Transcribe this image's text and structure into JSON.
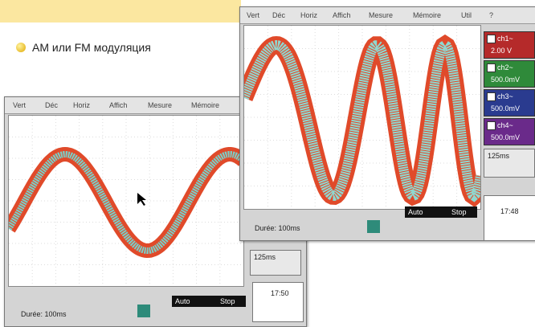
{
  "bullet_text": "АМ или FM модуляция",
  "left_window": {
    "menu": [
      "Vert",
      "Déc",
      "Horiz",
      "Affich",
      "Mesure",
      "Mémoire"
    ],
    "timebase": "Durée: 100ms",
    "sweep": "125ms",
    "mode": [
      "Auto",
      "Stop"
    ],
    "clock": "17:50"
  },
  "right_window": {
    "menu": [
      "Vert",
      "Déc",
      "Horiz",
      "Affich",
      "Mesure",
      "Mémoire",
      "Util",
      "?"
    ],
    "channels": [
      {
        "label": "ch1~",
        "scale": "2.00 V"
      },
      {
        "label": "ch2~",
        "scale": "500.0mV"
      },
      {
        "label": "ch3~",
        "scale": "500.0mV"
      },
      {
        "label": "ch4~",
        "scale": "500.0mV"
      }
    ],
    "timebase": "Durée: 100ms",
    "sweep": "125ms",
    "mode": [
      "Auto",
      "Stop"
    ],
    "clock": "17:48"
  }
}
